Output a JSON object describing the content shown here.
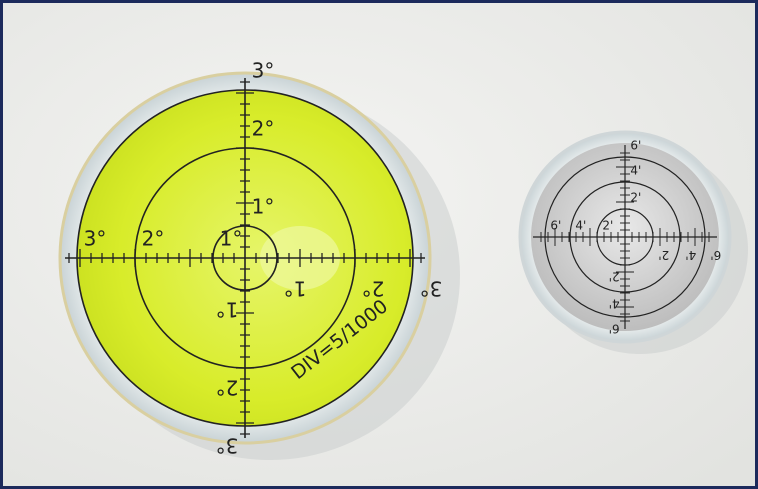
{
  "large_level": {
    "scale_labels": [
      "1°",
      "2°",
      "3°"
    ],
    "division": "DIV=5/1000"
  },
  "small_level": {
    "scale_labels": [
      "2'",
      "4'",
      "6'"
    ]
  }
}
